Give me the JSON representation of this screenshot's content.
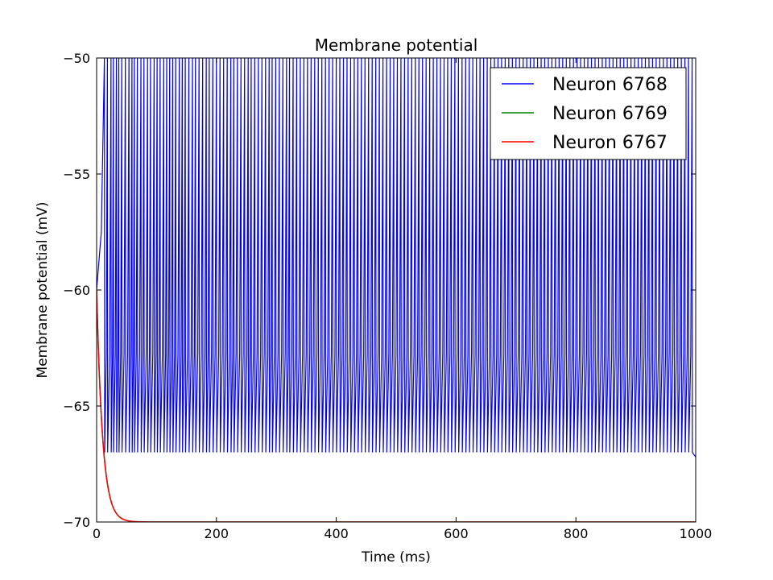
{
  "chart_data": {
    "type": "line",
    "title": "Membrane potential",
    "xlabel": "Time (ms)",
    "ylabel": "Membrane potential (mV)",
    "xlim": [
      0,
      1000
    ],
    "ylim": [
      -70,
      -50
    ],
    "xticks": [
      0,
      200,
      400,
      600,
      800,
      1000
    ],
    "yticks": [
      -70,
      -65,
      -60,
      -55,
      -50
    ],
    "grid": false,
    "legend_position": "top-right",
    "series": [
      {
        "name": "Neuron 6768",
        "color": "#0000ff",
        "description": "repetitive spiking between reset (~-67) and threshold (-50)",
        "reset": -67,
        "threshold": -50,
        "rest_start": -60,
        "spike_times": [
          13,
          18,
          24,
          28,
          33,
          37,
          42,
          48,
          54,
          59,
          63,
          68,
          74,
          79,
          85,
          90,
          96,
          101,
          106,
          112,
          117,
          122,
          127,
          132,
          138,
          143,
          148,
          154,
          160,
          165,
          171,
          177,
          183,
          188,
          194,
          200,
          206,
          212,
          218,
          224,
          229,
          235,
          241,
          247,
          253,
          258,
          264,
          270,
          276,
          282,
          288,
          293,
          299,
          305,
          311,
          317,
          322,
          328,
          334,
          340,
          346,
          352,
          358,
          364,
          370,
          376,
          382,
          388,
          394,
          400,
          406,
          412,
          418,
          424,
          430,
          436,
          442,
          448,
          454,
          460,
          466,
          472,
          478,
          484,
          490,
          496,
          502,
          508,
          514,
          520,
          526,
          532,
          538,
          544,
          550,
          556,
          562,
          568,
          574,
          580,
          586,
          592,
          598,
          604,
          610,
          616,
          622,
          628,
          634,
          640,
          646,
          652,
          658,
          664,
          670,
          676,
          682,
          688,
          694,
          700,
          706,
          712,
          718,
          724,
          730,
          736,
          742,
          748,
          754,
          760,
          766,
          772,
          778,
          784,
          790,
          796,
          802,
          808,
          814,
          820,
          826,
          832,
          838,
          844,
          850,
          856,
          862,
          868,
          874,
          880,
          886,
          892,
          898,
          904,
          910,
          916,
          922,
          928,
          934,
          940,
          946,
          952,
          958,
          964,
          970,
          976,
          982,
          988,
          994
        ]
      },
      {
        "name": "Neuron 6769",
        "color": "#008000",
        "description": "exponential decay from -60 to -70",
        "v0": -60,
        "v_inf": -70,
        "tau_ms": 10
      },
      {
        "name": "Neuron 6767",
        "color": "#ff0000",
        "description": "exponential decay from -60 to -70",
        "v0": -60,
        "v_inf": -70,
        "tau_ms": 10
      }
    ]
  }
}
